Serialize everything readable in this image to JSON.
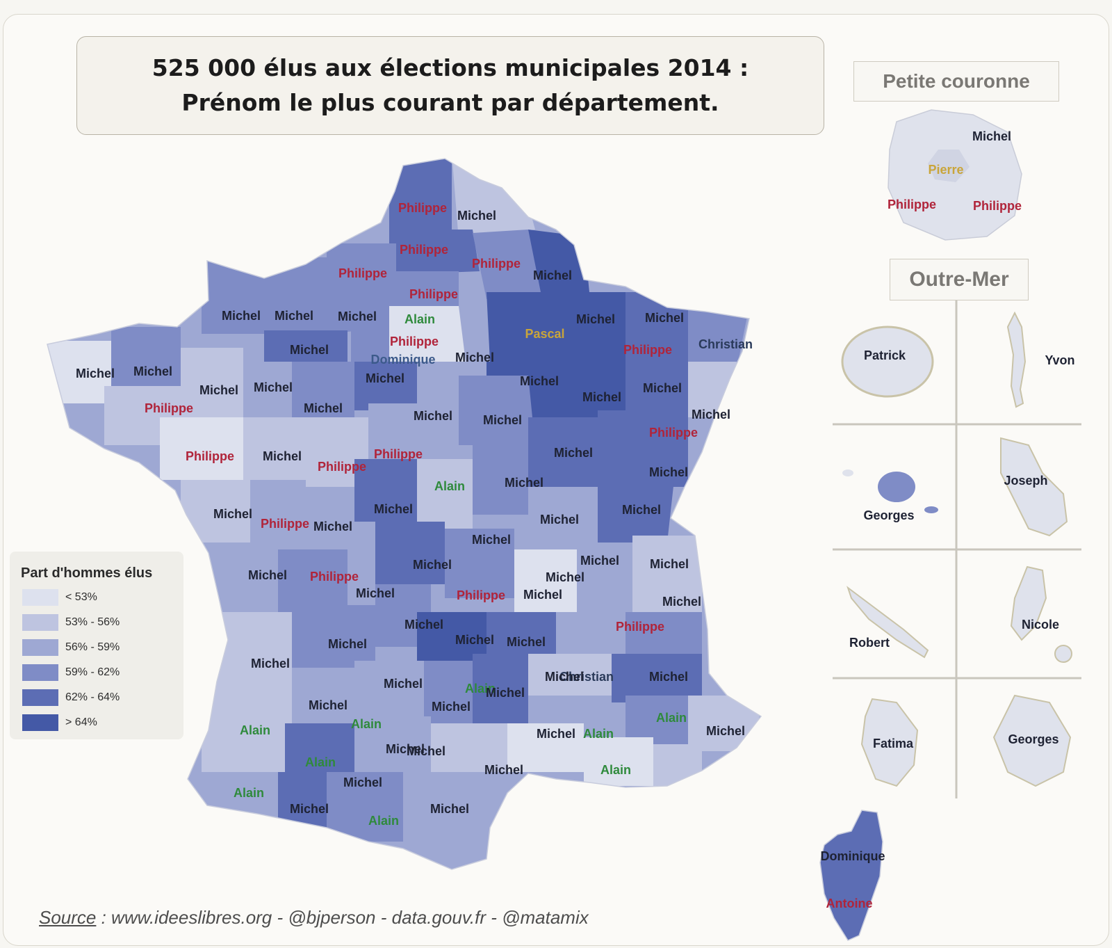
{
  "title": {
    "line1": "525 000 élus aux élections municipales 2014 :",
    "line2": "Prénom le plus courant par département."
  },
  "colors": {
    "name_default": "#1e2233",
    "name_philippe": "#b0243a",
    "name_alain": "#2f8a3c",
    "name_pascal": "#c9a53a",
    "name_dominique": "#3c5a8a",
    "name_christian": "#2a3a5a",
    "bins": [
      "#dde1ee",
      "#bec4e0",
      "#9ea8d3",
      "#7f8cc6",
      "#5c6db4",
      "#4459a6"
    ]
  },
  "legend": {
    "title": "Part d'hommes élus",
    "items": [
      {
        "label": "< 53%",
        "color": "#dde1ee"
      },
      {
        "label": "53% - 56%",
        "color": "#bec4e0"
      },
      {
        "label": "56% - 59%",
        "color": "#9ea8d3"
      },
      {
        "label": "59% - 62%",
        "color": "#7f8cc6"
      },
      {
        "label": "62% - 64%",
        "color": "#5c6db4"
      },
      {
        "label": "> 64%",
        "color": "#4459a6"
      }
    ]
  },
  "map_labels": [
    {
      "t": "Philippe",
      "s": "philippe"
    },
    {
      "t": "Michel",
      "s": "default"
    },
    {
      "t": "Philippe",
      "s": "philippe"
    },
    {
      "t": "Philippe",
      "s": "philippe"
    },
    {
      "t": "Philippe",
      "s": "philippe"
    },
    {
      "t": "Michel",
      "s": "default"
    },
    {
      "t": "Philippe",
      "s": "philippe"
    },
    {
      "t": "Michel",
      "s": "default"
    },
    {
      "t": "Michel",
      "s": "default"
    },
    {
      "t": "Michel",
      "s": "default"
    },
    {
      "t": "Alain",
      "s": "alain"
    },
    {
      "t": "Pascal",
      "s": "pascal"
    },
    {
      "t": "Michel",
      "s": "default"
    },
    {
      "t": "Michel",
      "s": "default"
    },
    {
      "t": "Philippe",
      "s": "philippe"
    },
    {
      "t": "Michel",
      "s": "default"
    },
    {
      "t": "Philippe",
      "s": "philippe"
    },
    {
      "t": "Christian",
      "s": "christian"
    },
    {
      "t": "Michel",
      "s": "default"
    },
    {
      "t": "Michel",
      "s": "default"
    },
    {
      "t": "Dominique",
      "s": "dominique"
    },
    {
      "t": "Michel",
      "s": "default"
    },
    {
      "t": "Michel",
      "s": "default"
    },
    {
      "t": "Michel",
      "s": "default"
    },
    {
      "t": "Michel",
      "s": "default"
    },
    {
      "t": "Michel",
      "s": "default"
    },
    {
      "t": "Michel",
      "s": "default"
    },
    {
      "t": "Michel",
      "s": "default"
    },
    {
      "t": "Philippe",
      "s": "philippe"
    },
    {
      "t": "Michel",
      "s": "default"
    },
    {
      "t": "Michel",
      "s": "default"
    },
    {
      "t": "Michel",
      "s": "default"
    },
    {
      "t": "Michel",
      "s": "default"
    },
    {
      "t": "Philippe",
      "s": "philippe"
    },
    {
      "t": "Philippe",
      "s": "philippe"
    },
    {
      "t": "Michel",
      "s": "default"
    },
    {
      "t": "Michel",
      "s": "default"
    },
    {
      "t": "Philippe",
      "s": "philippe"
    },
    {
      "t": "Philippe",
      "s": "philippe"
    },
    {
      "t": "Michel",
      "s": "default"
    },
    {
      "t": "Michel",
      "s": "default"
    },
    {
      "t": "Alain",
      "s": "alain"
    },
    {
      "t": "Michel",
      "s": "default"
    },
    {
      "t": "Michel",
      "s": "default"
    },
    {
      "t": "Philippe",
      "s": "philippe"
    },
    {
      "t": "Michel",
      "s": "default"
    },
    {
      "t": "Michel",
      "s": "default"
    },
    {
      "t": "Michel",
      "s": "default"
    },
    {
      "t": "Michel",
      "s": "default"
    },
    {
      "t": "Michel",
      "s": "default"
    },
    {
      "t": "Philippe",
      "s": "philippe"
    },
    {
      "t": "Michel",
      "s": "default"
    },
    {
      "t": "Michel",
      "s": "default"
    },
    {
      "t": "Michel",
      "s": "default"
    },
    {
      "t": "Michel",
      "s": "default"
    },
    {
      "t": "Michel",
      "s": "default"
    },
    {
      "t": "Philippe",
      "s": "philippe"
    },
    {
      "t": "Michel",
      "s": "default"
    },
    {
      "t": "Michel",
      "s": "default"
    },
    {
      "t": "Michel",
      "s": "default"
    },
    {
      "t": "Michel",
      "s": "default"
    },
    {
      "t": "Philippe",
      "s": "philippe"
    },
    {
      "t": "Michel",
      "s": "default"
    },
    {
      "t": "Michel",
      "s": "default"
    },
    {
      "t": "Michel",
      "s": "default"
    },
    {
      "t": "Michel",
      "s": "default"
    },
    {
      "t": "Christian",
      "s": "christian"
    },
    {
      "t": "Michel",
      "s": "default"
    },
    {
      "t": "Michel",
      "s": "default"
    },
    {
      "t": "Alain",
      "s": "alain"
    },
    {
      "t": "Michel",
      "s": "default"
    },
    {
      "t": "Michel",
      "s": "default"
    },
    {
      "t": "Alain",
      "s": "alain"
    },
    {
      "t": "Michel",
      "s": "default"
    },
    {
      "t": "Alain",
      "s": "alain"
    },
    {
      "t": "Alain",
      "s": "alain"
    },
    {
      "t": "Michel",
      "s": "default"
    },
    {
      "t": "Michel",
      "s": "default"
    },
    {
      "t": "Alain",
      "s": "alain"
    },
    {
      "t": "Alain",
      "s": "alain"
    },
    {
      "t": "Michel",
      "s": "default"
    },
    {
      "t": "Michel",
      "s": "default"
    },
    {
      "t": "Michel",
      "s": "default"
    },
    {
      "t": "Alain",
      "s": "alain"
    },
    {
      "t": "Michel",
      "s": "default"
    },
    {
      "t": "Alain",
      "s": "alain"
    },
    {
      "t": "Michel",
      "s": "default"
    },
    {
      "t": "Alain",
      "s": "alain"
    },
    {
      "t": "Michel",
      "s": "default"
    }
  ],
  "petite_couronne": {
    "title": "Petite couronne",
    "labels": [
      {
        "t": "Michel",
        "s": "default"
      },
      {
        "t": "Pierre",
        "s": "pascal"
      },
      {
        "t": "Philippe",
        "s": "philippe"
      },
      {
        "t": "Philippe",
        "s": "philippe"
      }
    ]
  },
  "outre_mer": {
    "title": "Outre-Mer",
    "labels": [
      "Patrick",
      "Yvon",
      "Georges",
      "Joseph",
      "Robert",
      "Nicole",
      "Fatima",
      "Georges"
    ]
  },
  "corsica": {
    "labels": [
      {
        "t": "Dominique",
        "s": "default"
      },
      {
        "t": "Antoine",
        "s": "philippe"
      }
    ]
  },
  "source": {
    "label": "Source",
    "text": " : www.ideeslibres.org - @bjperson - data.gouv.fr - @matamix"
  }
}
